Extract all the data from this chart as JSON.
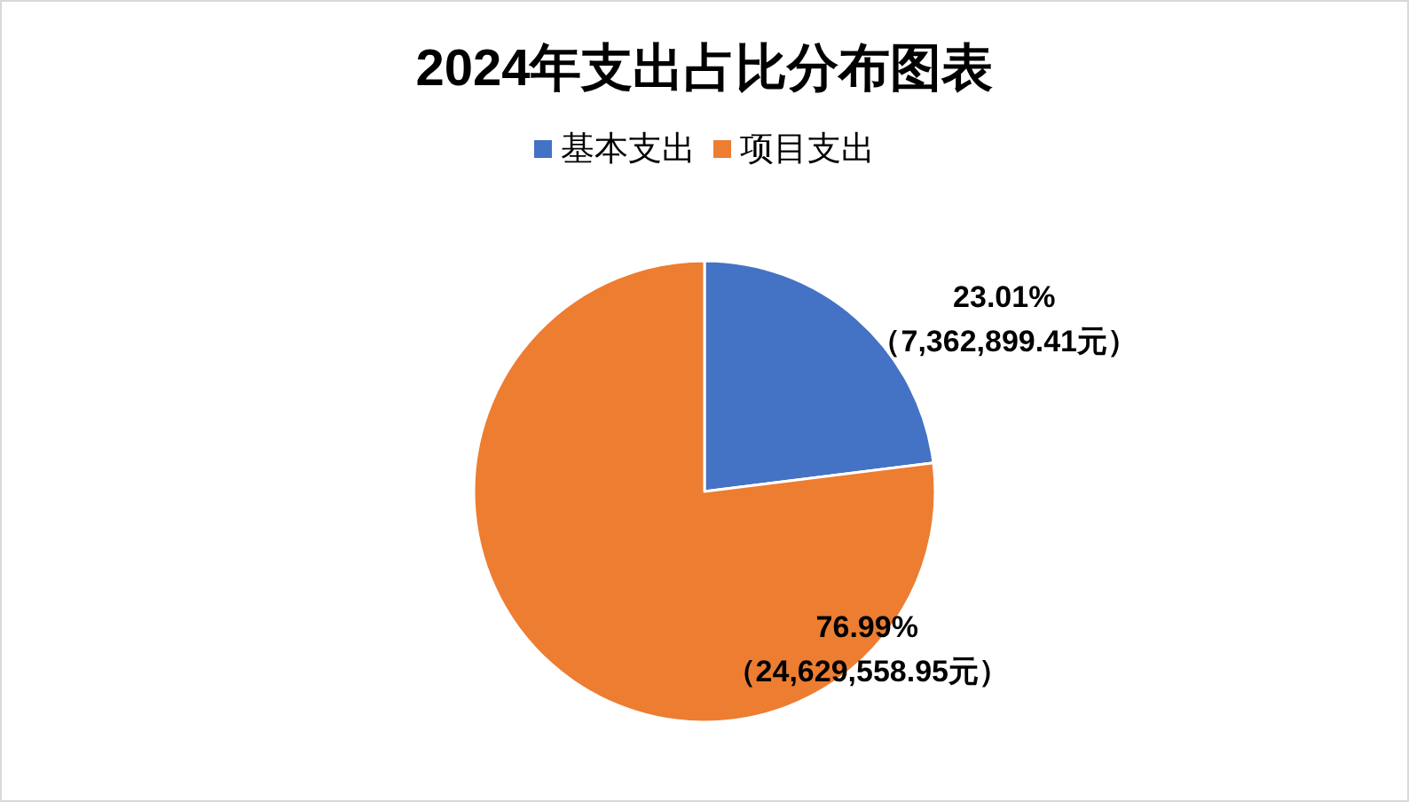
{
  "chart_data": {
    "type": "pie",
    "title": "2024年支出占比分布图表",
    "categories": [
      "基本支出",
      "项目支出"
    ],
    "values": [
      7362899.41,
      24629558.95
    ],
    "colors": [
      "#4472c4",
      "#ed7d31"
    ],
    "value_labels": [
      "23.01%\n（7,362,899.41元）",
      "76.99%\n（24,629,558.95元）"
    ],
    "legend": "top"
  }
}
